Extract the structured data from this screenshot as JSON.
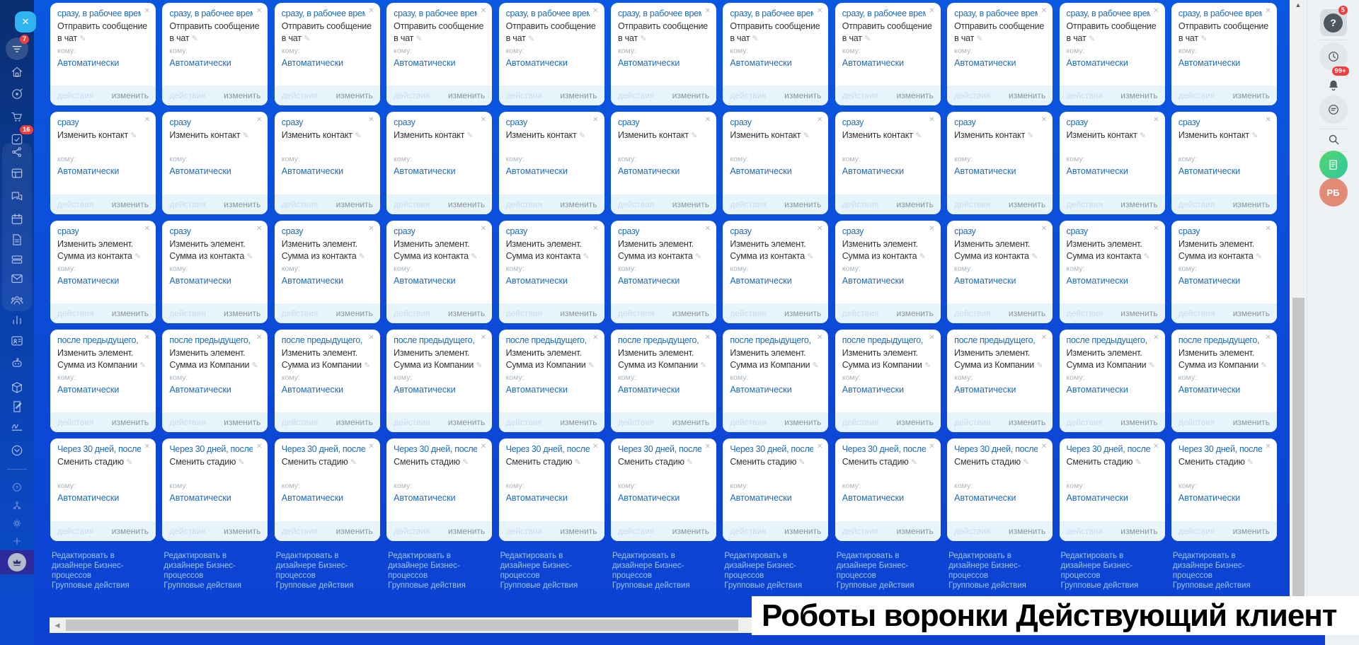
{
  "page_title": "Роботы воронки Действующий клиент",
  "icons": {
    "close": "✕",
    "pencil": "✎",
    "scroll_up": "▲",
    "scroll_left": "◀"
  },
  "colors": {
    "canvas_blue": "#0c4bd6",
    "sidebar_navy": "#0a2d6e",
    "link_blue": "#1e6ab8",
    "card_footer_bg": "#e8f4fc",
    "badge_red": "#ef3e3e",
    "collapse_button_blue": "#2fb3f1",
    "crown_block_indigo": "#2e2a99",
    "title_text": "#000000"
  },
  "left_sidebar": {
    "collapse_icon": "close-icon",
    "items": [
      {
        "icon": "funnel-icon",
        "badge": "7",
        "style": "bub"
      },
      {
        "icon": "home-icon"
      },
      {
        "icon": "target-icon"
      },
      {
        "icon": "cart-icon"
      },
      {
        "icon": "tasks-icon",
        "badge": "16"
      },
      {
        "icon": "share-icon"
      },
      {
        "icon": "kanban-icon"
      },
      {
        "icon": "chat-icon"
      },
      {
        "icon": "calendar-icon"
      },
      {
        "icon": "document-icon"
      },
      {
        "icon": "drive-icon"
      },
      {
        "icon": "mail-icon"
      },
      {
        "icon": "users-icon"
      },
      {
        "icon": "chart-icon"
      },
      {
        "icon": "contact-card-icon"
      },
      {
        "icon": "robot-icon"
      },
      {
        "icon": "box-icon"
      },
      {
        "icon": "document-edit-icon"
      },
      {
        "icon": "signature-icon"
      },
      {
        "icon": "chevron-circle-icon"
      },
      {
        "icon": "help-icon",
        "style": "dim"
      },
      {
        "icon": "tree-icon",
        "style": "dim"
      },
      {
        "icon": "gear-icon",
        "style": "dim"
      },
      {
        "icon": "plus-icon",
        "style": "dim"
      },
      {
        "icon": "crown-icon",
        "style": "crown"
      }
    ]
  },
  "right_sidebar": {
    "help_badge": "5",
    "bell_badge": "99+",
    "profile_label": "РБ"
  },
  "grid": {
    "column_count": 11,
    "rows": [
      {
        "title": "сразу, в рабочее врем...",
        "action": "Отправить сообщение в чат",
        "to_label": "кому:",
        "to_value": "Автоматически"
      },
      {
        "title": "сразу",
        "action": "Изменить контакт",
        "to_label": "кому:",
        "to_value": "Автоматически"
      },
      {
        "title": "сразу",
        "action": "Изменить элемент. Сумма из контакта",
        "to_label": "кому:",
        "to_value": "Автоматически"
      },
      {
        "title": "после предыдущего, п...",
        "action": "Изменить элемент. Сумма из Компании",
        "to_label": "кому:",
        "to_value": "Автоматически"
      },
      {
        "title": "Через 30 дней, после ...",
        "action": "Сменить стадию",
        "to_label": "кому:",
        "to_value": "Автоматически"
      }
    ],
    "footer": {
      "actions": "действия",
      "edit": "изменить"
    },
    "links": {
      "designer": "Редактировать в дизайнере Бизнес-процессов",
      "group": "Групповые действия"
    }
  }
}
